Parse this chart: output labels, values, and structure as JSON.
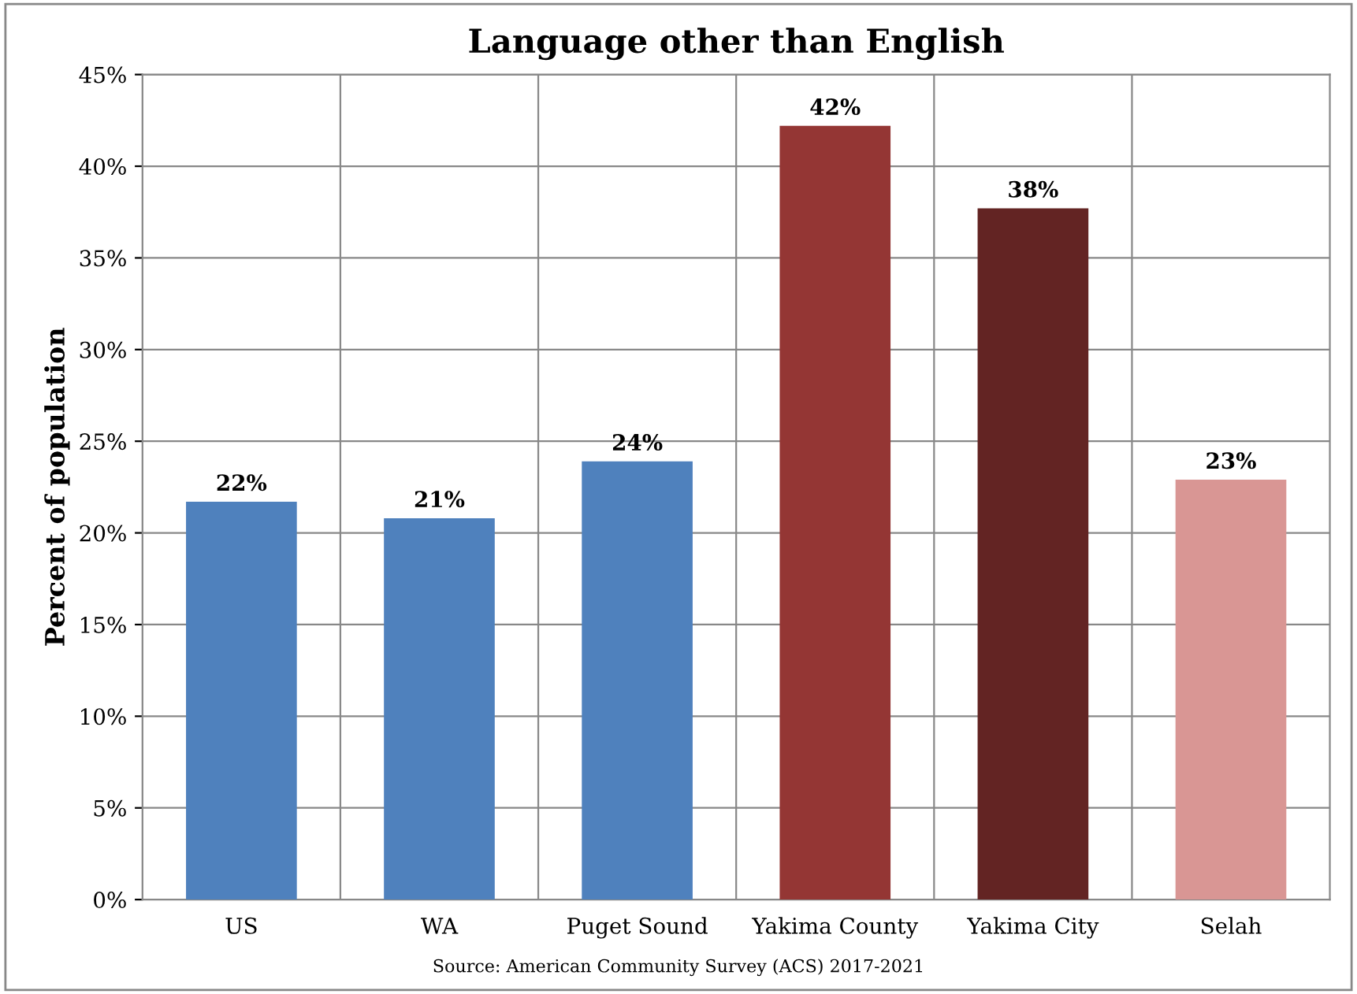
{
  "chart_data": {
    "type": "bar",
    "title": "Language other than English",
    "ylabel": "Percent of population",
    "categories": [
      "US",
      "WA",
      "Puget Sound",
      "Yakima County",
      "Yakima City",
      "Selah"
    ],
    "values": [
      21.7,
      20.8,
      23.9,
      42.2,
      37.7,
      22.9
    ],
    "colors": [
      "#4f81bd",
      "#4f81bd",
      "#4f81bd",
      "#943634",
      "#632423",
      "#d99694"
    ],
    "value_labels": [
      "22%",
      "21%",
      "24%",
      "42%",
      "38%",
      "23%"
    ],
    "ylim": [
      0,
      45
    ],
    "yticks": [
      {
        "value": 0,
        "label": "0%"
      },
      {
        "value": 5,
        "label": "5%"
      },
      {
        "value": 10,
        "label": "10%"
      },
      {
        "value": 15,
        "label": "15%"
      },
      {
        "value": 20,
        "label": "20%"
      },
      {
        "value": 25,
        "label": "25%"
      },
      {
        "value": 30,
        "label": "30%"
      },
      {
        "value": 35,
        "label": "35%"
      },
      {
        "value": 40,
        "label": "40%"
      },
      {
        "value": 45,
        "label": "45%"
      }
    ],
    "grid": true,
    "annotations": [
      "Source: American Community Survey (ACS) 2017-2021"
    ]
  }
}
